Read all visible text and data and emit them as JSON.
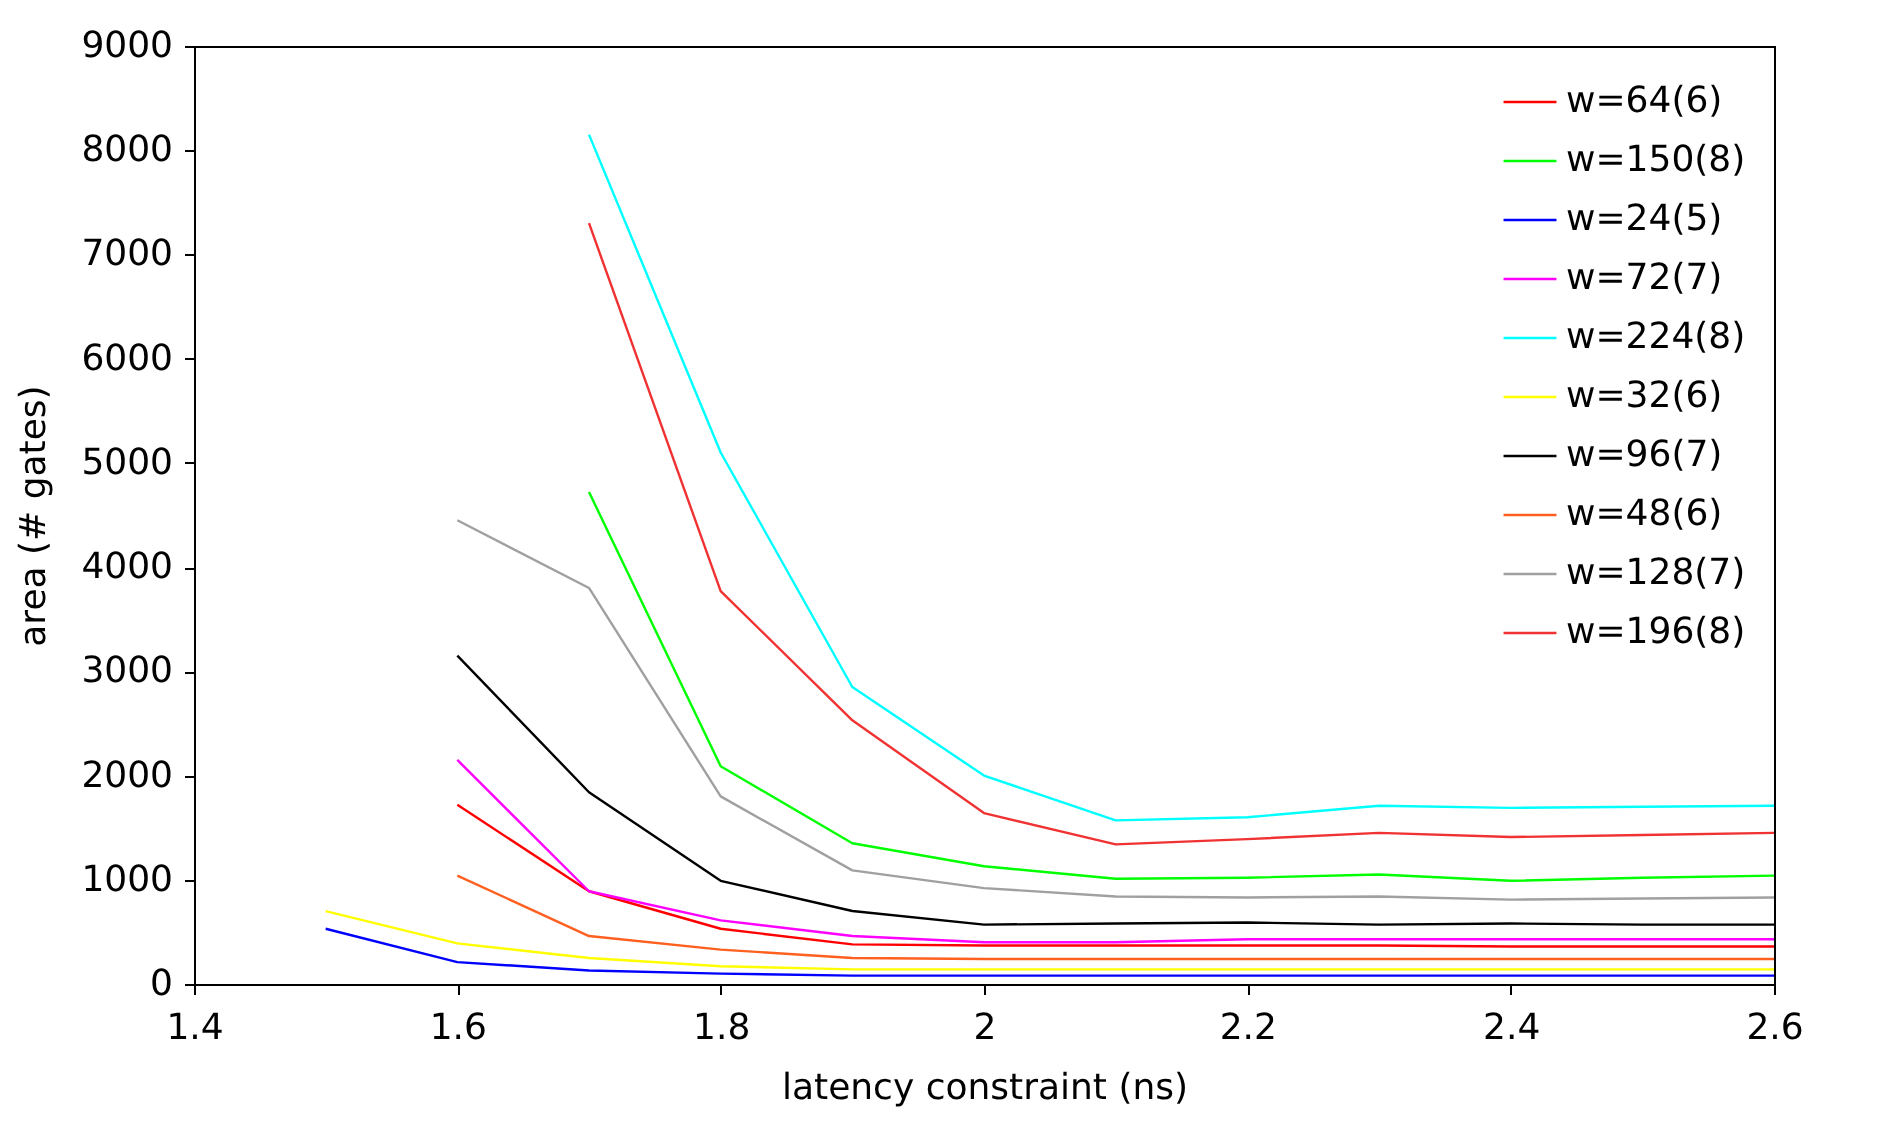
{
  "chart_data": {
    "type": "line",
    "xlabel": "latency constraint (ns)",
    "ylabel": "area (# gates)",
    "xlim": [
      1.4,
      2.6
    ],
    "xticks": [
      1.4,
      1.6,
      1.8,
      2,
      2.2,
      2.4,
      2.6
    ],
    "ylim": [
      0,
      9000
    ],
    "yticks": [
      0,
      1000,
      2000,
      3000,
      4000,
      5000,
      6000,
      7000,
      8000,
      9000
    ],
    "grid": false,
    "legend": "top right",
    "marker": "none",
    "line_style": "solid",
    "series": [
      {
        "name": "w=64(6)",
        "color": "#ff0000",
        "x": [
          1.6,
          1.7,
          1.8,
          1.9,
          2.0,
          2.1,
          2.2,
          2.3,
          2.4,
          2.5,
          2.6
        ],
        "values": [
          1720,
          890,
          530,
          380,
          370,
          370,
          370,
          370,
          360,
          360,
          360
        ]
      },
      {
        "name": "w=150(8)",
        "color": "#00ff00",
        "x": [
          1.7,
          1.8,
          1.9,
          2.0,
          2.1,
          2.2,
          2.3,
          2.4,
          2.5,
          2.6
        ],
        "values": [
          4720,
          2090,
          1350,
          1130,
          1010,
          1020,
          1050,
          990,
          1020,
          1040
        ]
      },
      {
        "name": "w=24(5)",
        "color": "#0000ff",
        "x": [
          1.5,
          1.6,
          1.7,
          1.8,
          1.9,
          2.0,
          2.1,
          2.2,
          2.3,
          2.4,
          2.5,
          2.6
        ],
        "values": [
          530,
          210,
          130,
          100,
          80,
          80,
          80,
          80,
          80,
          80,
          80,
          80
        ]
      },
      {
        "name": "w=72(7)",
        "color": "#ff00ff",
        "x": [
          1.6,
          1.7,
          1.8,
          1.9,
          2.0,
          2.1,
          2.2,
          2.3,
          2.4,
          2.5,
          2.6
        ],
        "values": [
          2150,
          890,
          610,
          460,
          400,
          400,
          430,
          430,
          430,
          430,
          430
        ]
      },
      {
        "name": "w=224(8)",
        "color": "#00ffff",
        "x": [
          1.7,
          1.8,
          1.9,
          2.0,
          2.1,
          2.2,
          2.3,
          2.4,
          2.5,
          2.6
        ],
        "values": [
          8150,
          5100,
          2850,
          2000,
          1570,
          1600,
          1710,
          1690,
          1700,
          1710
        ]
      },
      {
        "name": "w=32(6)",
        "color": "#ffff00",
        "x": [
          1.5,
          1.6,
          1.7,
          1.8,
          1.9,
          2.0,
          2.1,
          2.2,
          2.3,
          2.4,
          2.5,
          2.6
        ],
        "values": [
          700,
          390,
          250,
          170,
          140,
          140,
          140,
          140,
          140,
          140,
          140,
          140
        ]
      },
      {
        "name": "w=96(7)",
        "color": "#000000",
        "x": [
          1.6,
          1.7,
          1.8,
          1.9,
          2.0,
          2.1,
          2.2,
          2.3,
          2.4,
          2.5,
          2.6
        ],
        "values": [
          3150,
          1840,
          990,
          700,
          570,
          580,
          590,
          570,
          580,
          570,
          570
        ]
      },
      {
        "name": "w=48(6)",
        "color": "#ff6020",
        "x": [
          1.6,
          1.7,
          1.8,
          1.9,
          2.0,
          2.1,
          2.2,
          2.3,
          2.4,
          2.5,
          2.6
        ],
        "values": [
          1040,
          460,
          330,
          250,
          240,
          240,
          240,
          240,
          240,
          240,
          240
        ]
      },
      {
        "name": "w=128(7)",
        "color": "#a0a0a0",
        "x": [
          1.6,
          1.7,
          1.8,
          1.9,
          2.0,
          2.1,
          2.2,
          2.3,
          2.4,
          2.5,
          2.6
        ],
        "values": [
          4450,
          3800,
          1800,
          1090,
          920,
          840,
          830,
          840,
          810,
          820,
          830
        ]
      },
      {
        "name": "w=196(8)",
        "color": "#f03232",
        "x": [
          1.7,
          1.8,
          1.9,
          2.0,
          2.1,
          2.2,
          2.3,
          2.4,
          2.5,
          2.6
        ],
        "values": [
          7300,
          3770,
          2530,
          1640,
          1340,
          1390,
          1450,
          1410,
          1430,
          1450
        ]
      }
    ]
  }
}
